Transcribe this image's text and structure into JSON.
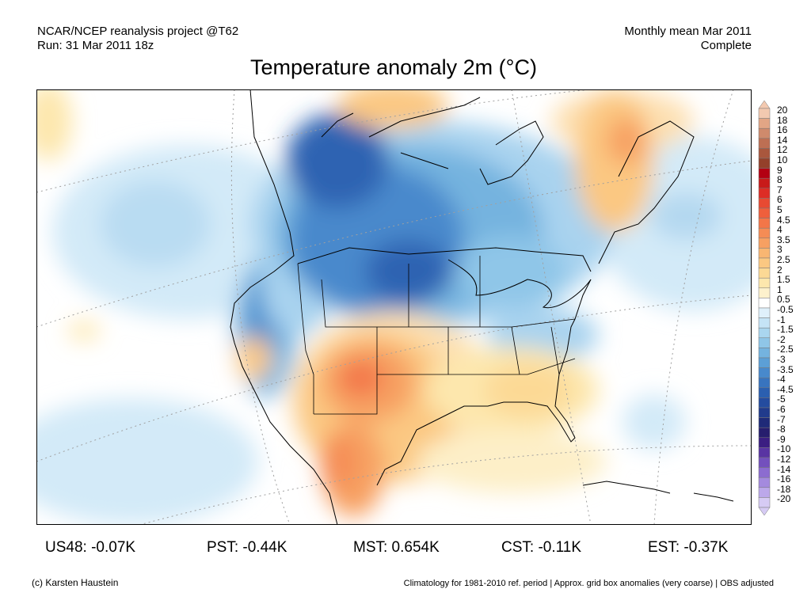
{
  "header": {
    "project": "NCAR/NCEP reanalysis project @T62",
    "run": "Run: 31 Mar 2011 18z",
    "period": "Monthly mean Mar 2011",
    "status": "Complete"
  },
  "title": "Temperature anomaly 2m (°C)",
  "colorbar": {
    "labels": [
      "20",
      "18",
      "16",
      "14",
      "12",
      "10",
      "9",
      "8",
      "7",
      "6",
      "5",
      "4.5",
      "4",
      "3.5",
      "3",
      "2.5",
      "2",
      "1.5",
      "1",
      "0.5",
      "-0.5",
      "-1",
      "-1.5",
      "-2",
      "-2.5",
      "-3",
      "-3.5",
      "-4",
      "-4.5",
      "-5",
      "-6",
      "-7",
      "-8",
      "-9",
      "-10",
      "-12",
      "-14",
      "-16",
      "-18",
      "-20"
    ],
    "colors": [
      "#f3c9b0",
      "#e2a585",
      "#cf8a6c",
      "#bd6f53",
      "#a9573d",
      "#94402a",
      "#b30012",
      "#c81a1a",
      "#dd2d25",
      "#e84a32",
      "#ef5f3c",
      "#f37648",
      "#f58c55",
      "#f7a062",
      "#f9b672",
      "#fbc882",
      "#fcd995",
      "#fde7ad",
      "#fdf1cd",
      "#ffffff",
      "#dff0fb",
      "#c5e4f6",
      "#aad6ef",
      "#8fc6e8",
      "#74b3df",
      "#5c9fd6",
      "#4889cc",
      "#3874bf",
      "#2b5fb0",
      "#244c9f",
      "#213b8c",
      "#1f2a78",
      "#271e6e",
      "#3b1e82",
      "#5934a3",
      "#7350bd",
      "#8c6cd0",
      "#a48ade",
      "#bca8ea",
      "#d6cbf4"
    ]
  },
  "map_colors": {
    "land_line": "#000000",
    "grid_line": "#a0a0a0"
  },
  "stats": [
    {
      "label": "US48: -0.07K"
    },
    {
      "label": "PST: -0.44K"
    },
    {
      "label": "MST: 0.654K"
    },
    {
      "label": "CST: -0.11K"
    },
    {
      "label": "EST: -0.37K"
    }
  ],
  "footer": {
    "copyright": "(c) Karsten Haustein",
    "note": "Climatology for 1981-2010 ref. period | Approx. grid box anomalies (very coarse) | OBS adjusted"
  }
}
